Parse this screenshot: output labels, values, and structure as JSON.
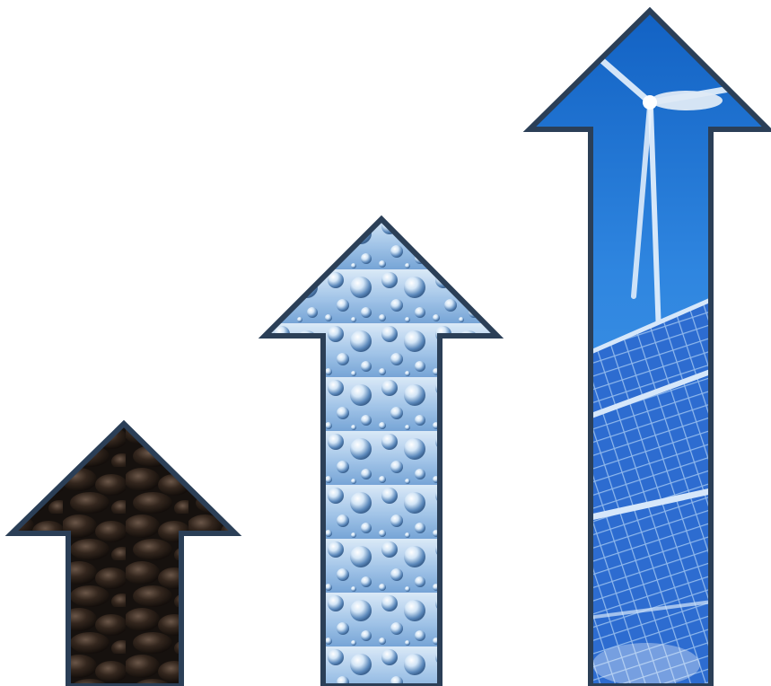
{
  "scene": {
    "background": "#ffffff",
    "outline_color": "#2b3f57",
    "arrows": [
      {
        "name": "coal-arrow",
        "fill_theme": "coal",
        "colors": {
          "dark": "#1a1411",
          "mid": "#3b2c22",
          "light": "#6a5446"
        }
      },
      {
        "name": "water-bubbles-arrow",
        "fill_theme": "water-bubbles",
        "colors": {
          "dark": "#5f8fc4",
          "mid": "#a9c9ea",
          "light": "#e7f1fb"
        }
      },
      {
        "name": "wind-solar-arrow",
        "fill_theme": "wind-and-solar",
        "colors": {
          "sky_top": "#1467c9",
          "sky_bottom": "#3d92e6",
          "panel": "#2f6fd1",
          "panel_line": "#b9d6f5",
          "turbine": "#e9f3fd"
        }
      }
    ]
  }
}
